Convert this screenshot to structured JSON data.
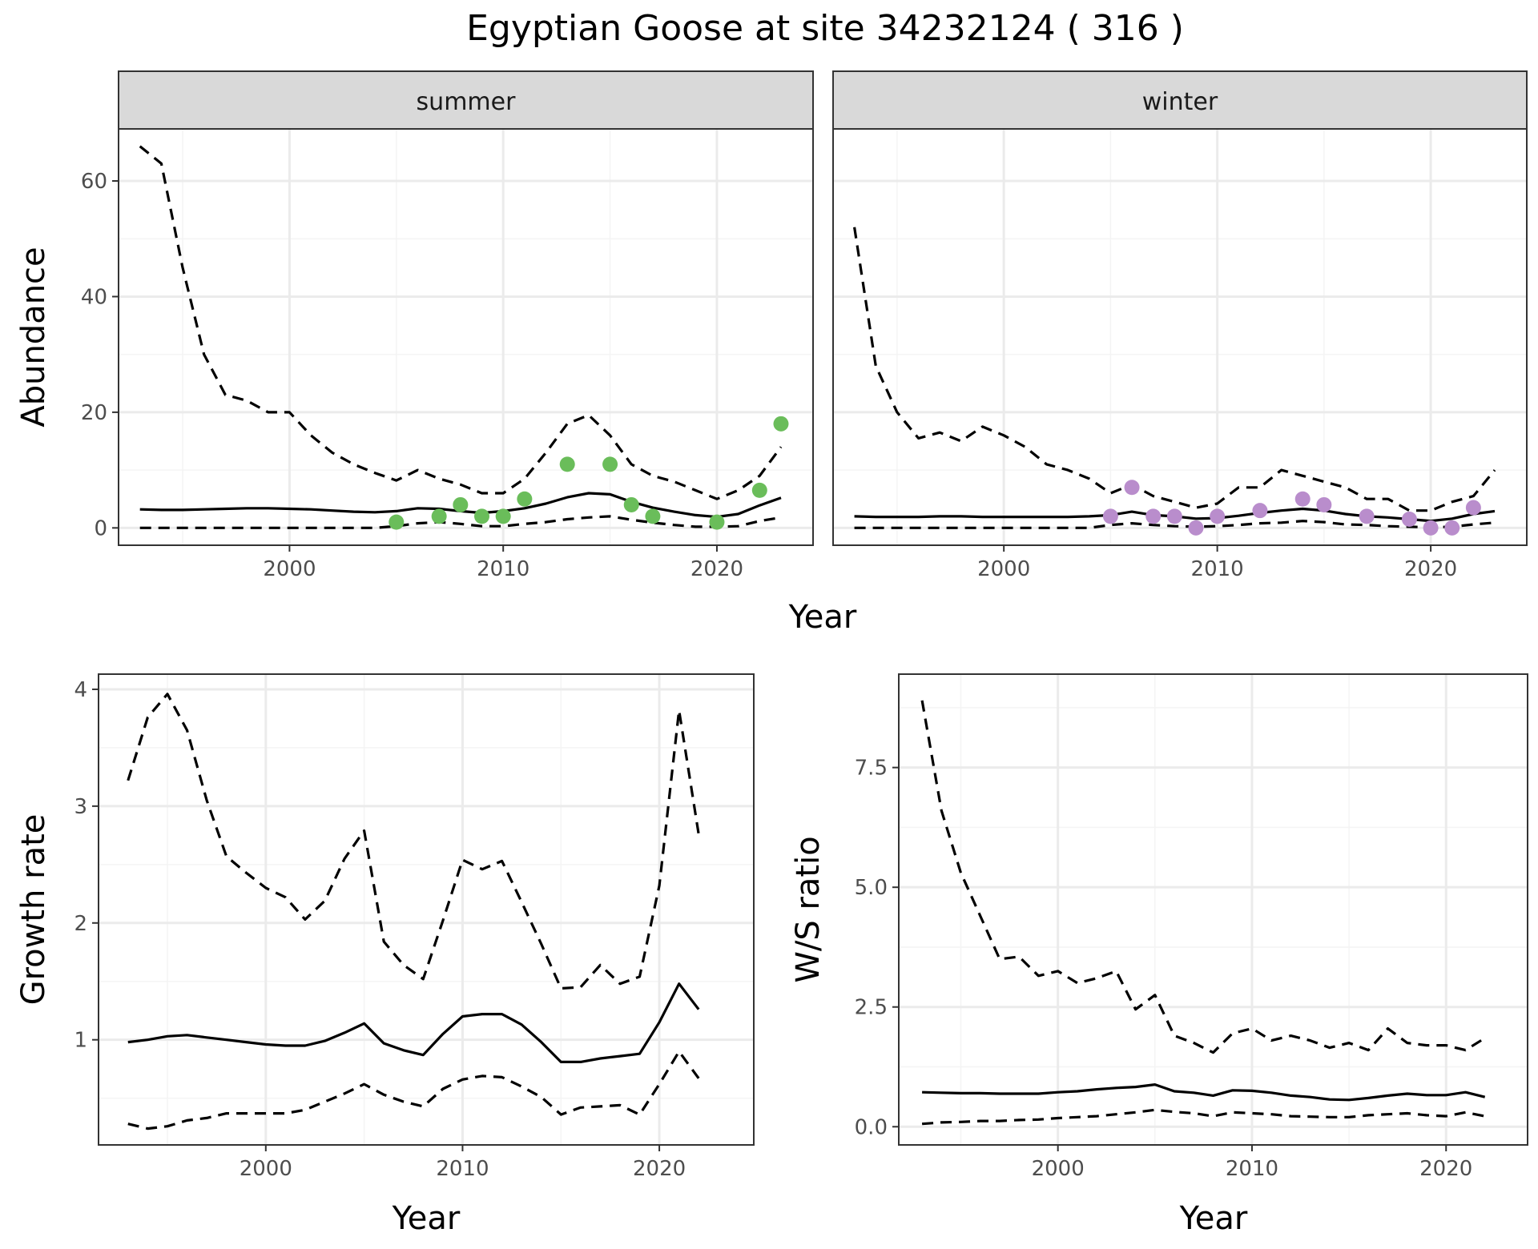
{
  "title": "Egyptian Goose at site 34232124 ( 316 )",
  "colors": {
    "summer_points": "#6abd5a",
    "winter_points": "#b98dcc",
    "line": "#000000",
    "grid_major": "#ebebeb",
    "grid_minor": "#f4f4f4",
    "strip_fill": "#d9d9d9",
    "panel_border": "#333333"
  },
  "chart_data": [
    {
      "type": "line",
      "facet": "summer",
      "xlabel": "Year",
      "ylabel": "Abundance",
      "xlim": [
        1992,
        2024.5
      ],
      "ylim": [
        -3,
        69
      ],
      "xticks": [
        2000,
        2010,
        2020
      ],
      "yticks": [
        0,
        20,
        40,
        60
      ],
      "x": [
        1993,
        1994,
        1995,
        1996,
        1997,
        1998,
        1999,
        2000,
        2001,
        2002,
        2003,
        2004,
        2005,
        2006,
        2007,
        2008,
        2009,
        2010,
        2011,
        2012,
        2013,
        2014,
        2015,
        2016,
        2017,
        2018,
        2019,
        2020,
        2021,
        2022,
        2023
      ],
      "series": [
        {
          "style": "solid",
          "values": [
            3.2,
            3.1,
            3.1,
            3.2,
            3.3,
            3.4,
            3.4,
            3.3,
            3.2,
            3.0,
            2.8,
            2.7,
            2.9,
            3.4,
            3.3,
            2.9,
            2.6,
            2.9,
            3.4,
            4.2,
            5.3,
            6.0,
            5.8,
            4.5,
            3.5,
            2.8,
            2.2,
            1.9,
            2.4,
            3.9,
            5.2
          ]
        },
        {
          "style": "dashed",
          "values": [
            66,
            63,
            45,
            30,
            23,
            22,
            20,
            20,
            16,
            13,
            11,
            9.5,
            8.2,
            10,
            8.5,
            7.5,
            6,
            6,
            8.5,
            13,
            18,
            19.5,
            16,
            11,
            9,
            8,
            6.5,
            5,
            6.5,
            9,
            14
          ]
        },
        {
          "style": "dashed",
          "values": [
            0,
            0,
            0,
            0,
            0,
            0,
            0,
            0,
            0,
            0,
            0,
            0,
            0.3,
            0.8,
            1.0,
            0.7,
            0.3,
            0.3,
            0.7,
            1.0,
            1.5,
            1.8,
            2.0,
            1.4,
            0.9,
            0.5,
            0.2,
            0.2,
            0.3,
            1.2,
            1.8
          ]
        }
      ],
      "points": {
        "x": [
          2005,
          2007,
          2008,
          2009,
          2010,
          2011,
          2013,
          2015,
          2016,
          2017,
          2020,
          2022,
          2023
        ],
        "y": [
          1,
          2,
          4,
          2,
          2,
          5,
          11,
          11,
          4,
          2,
          1,
          6.5,
          18
        ]
      }
    },
    {
      "type": "line",
      "facet": "winter",
      "xlabel": "Year",
      "ylabel": "Abundance",
      "xlim": [
        1992,
        2024.5
      ],
      "ylim": [
        -3,
        69
      ],
      "xticks": [
        2000,
        2010,
        2020
      ],
      "yticks": [
        0,
        20,
        40,
        60
      ],
      "x": [
        1993,
        1994,
        1995,
        1996,
        1997,
        1998,
        1999,
        2000,
        2001,
        2002,
        2003,
        2004,
        2005,
        2006,
        2007,
        2008,
        2009,
        2010,
        2011,
        2012,
        2013,
        2014,
        2015,
        2016,
        2017,
        2018,
        2019,
        2020,
        2021,
        2022,
        2023
      ],
      "series": [
        {
          "style": "solid",
          "values": [
            2.0,
            1.9,
            1.9,
            1.9,
            2.0,
            2.0,
            1.9,
            1.9,
            1.9,
            1.9,
            1.9,
            2.0,
            2.2,
            2.8,
            2.2,
            2.0,
            1.6,
            1.7,
            2.1,
            2.6,
            3.0,
            3.3,
            3.0,
            2.4,
            2.0,
            1.8,
            1.5,
            1.2,
            1.6,
            2.4,
            2.9
          ]
        },
        {
          "style": "dashed",
          "values": [
            52,
            28,
            20,
            15.5,
            16.5,
            15,
            17.5,
            16,
            14,
            11,
            10,
            8.5,
            6,
            7.5,
            5.5,
            4.5,
            3.5,
            4.2,
            7,
            7,
            10,
            9,
            8,
            7,
            5,
            5,
            3,
            3,
            4.5,
            5.5,
            10
          ]
        },
        {
          "style": "dashed",
          "values": [
            0,
            0,
            0,
            0,
            0,
            0,
            0,
            0,
            0,
            0,
            0,
            0,
            0.5,
            0.8,
            0.5,
            0.3,
            0.2,
            0.3,
            0.5,
            0.8,
            0.9,
            1.2,
            1.0,
            0.6,
            0.5,
            0.3,
            0.2,
            0.1,
            0.2,
            0.6,
            0.9
          ]
        }
      ],
      "points": {
        "x": [
          2005,
          2006,
          2007,
          2008,
          2009,
          2010,
          2012,
          2014,
          2015,
          2017,
          2019,
          2020,
          2021,
          2022
        ],
        "y": [
          2,
          7,
          2,
          2,
          0,
          2,
          3,
          5,
          4,
          2,
          1.5,
          0,
          0,
          3.5
        ]
      }
    },
    {
      "type": "line",
      "xlabel": "Year",
      "ylabel": "Growth rate",
      "xlim": [
        1991.5,
        2024.8
      ],
      "ylim": [
        0.1,
        4.13
      ],
      "xticks": [
        2000,
        2010,
        2020
      ],
      "yticks": [
        1,
        2,
        3,
        4
      ],
      "yticklabels": [
        "1",
        "2",
        "3",
        "4"
      ],
      "x": [
        1993,
        1994,
        1995,
        1996,
        1997,
        1998,
        1999,
        2000,
        2001,
        2002,
        2003,
        2004,
        2005,
        2006,
        2007,
        2008,
        2009,
        2010,
        2011,
        2012,
        2013,
        2014,
        2015,
        2016,
        2017,
        2018,
        2019,
        2020,
        2021,
        2022
      ],
      "series": [
        {
          "style": "solid",
          "values": [
            0.98,
            1.0,
            1.03,
            1.04,
            1.02,
            1.0,
            0.98,
            0.96,
            0.95,
            0.95,
            0.99,
            1.06,
            1.14,
            0.97,
            0.91,
            0.87,
            1.05,
            1.2,
            1.22,
            1.22,
            1.13,
            0.98,
            0.81,
            0.81,
            0.84,
            0.86,
            0.88,
            1.15,
            1.48,
            1.26
          ]
        },
        {
          "style": "dashed",
          "values": [
            3.22,
            3.76,
            3.96,
            3.65,
            3.05,
            2.57,
            2.43,
            2.3,
            2.22,
            2.03,
            2.19,
            2.55,
            2.79,
            1.84,
            1.64,
            1.52,
            2.02,
            2.54,
            2.46,
            2.53,
            2.18,
            1.82,
            1.44,
            1.45,
            1.64,
            1.48,
            1.54,
            2.32,
            3.82,
            2.76
          ]
        },
        {
          "style": "dashed",
          "values": [
            0.28,
            0.24,
            0.26,
            0.31,
            0.33,
            0.37,
            0.37,
            0.37,
            0.37,
            0.4,
            0.47,
            0.54,
            0.62,
            0.53,
            0.47,
            0.43,
            0.58,
            0.66,
            0.69,
            0.68,
            0.6,
            0.51,
            0.36,
            0.42,
            0.43,
            0.44,
            0.36,
            0.62,
            0.9,
            0.67
          ]
        }
      ]
    },
    {
      "type": "line",
      "xlabel": "Year",
      "ylabel": "W/S ratio",
      "xlim": [
        1991.8,
        2024.2
      ],
      "ylim": [
        -0.38,
        9.45
      ],
      "xticks": [
        2000,
        2010,
        2020
      ],
      "yticks": [
        0,
        2.5,
        5,
        7.5
      ],
      "yticklabels": [
        "0.0",
        "2.5",
        "5.0",
        "7.5"
      ],
      "x": [
        1993,
        1994,
        1995,
        1996,
        1997,
        1998,
        1999,
        2000,
        2001,
        2002,
        2003,
        2004,
        2005,
        2006,
        2007,
        2008,
        2009,
        2010,
        2011,
        2012,
        2013,
        2014,
        2015,
        2016,
        2017,
        2018,
        2019,
        2020,
        2021,
        2022
      ],
      "series": [
        {
          "style": "solid",
          "values": [
            0.72,
            0.71,
            0.7,
            0.7,
            0.69,
            0.69,
            0.69,
            0.72,
            0.74,
            0.78,
            0.81,
            0.83,
            0.88,
            0.74,
            0.71,
            0.65,
            0.76,
            0.75,
            0.71,
            0.65,
            0.62,
            0.57,
            0.56,
            0.6,
            0.65,
            0.69,
            0.66,
            0.66,
            0.72,
            0.62
          ]
        },
        {
          "style": "dashed",
          "values": [
            8.9,
            6.6,
            5.3,
            4.4,
            3.5,
            3.55,
            3.15,
            3.25,
            3.0,
            3.1,
            3.25,
            2.45,
            2.75,
            1.9,
            1.75,
            1.55,
            1.95,
            2.05,
            1.8,
            1.9,
            1.8,
            1.65,
            1.75,
            1.6,
            2.05,
            1.75,
            1.7,
            1.7,
            1.6,
            1.85
          ]
        },
        {
          "style": "dashed",
          "values": [
            0.06,
            0.09,
            0.1,
            0.12,
            0.12,
            0.14,
            0.15,
            0.18,
            0.2,
            0.22,
            0.26,
            0.3,
            0.35,
            0.31,
            0.28,
            0.22,
            0.3,
            0.28,
            0.26,
            0.22,
            0.21,
            0.2,
            0.2,
            0.24,
            0.26,
            0.28,
            0.24,
            0.22,
            0.3,
            0.22
          ]
        }
      ]
    }
  ]
}
